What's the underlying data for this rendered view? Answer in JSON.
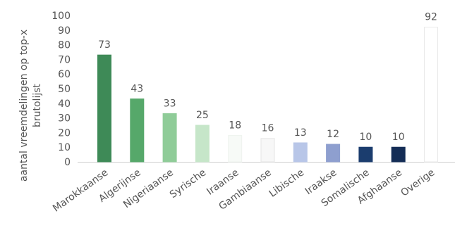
{
  "chart_data": {
    "type": "bar",
    "title": "",
    "xlabel": "",
    "ylabel_lines": [
      "aantal vreemdelingen op top-x",
      "brutolijst"
    ],
    "ylim": [
      0,
      100
    ],
    "yticks": [
      0,
      10,
      20,
      30,
      40,
      50,
      60,
      70,
      80,
      90,
      100
    ],
    "grid": false,
    "categories": [
      "Marokkaanse",
      "Algerijnse",
      "Nigeriaanse",
      "Syrische",
      "Iraanse",
      "Gambiaanse",
      "Libische",
      "Iraakse",
      "Somalische",
      "Afghaanse",
      "Overige"
    ],
    "values": [
      73,
      43,
      33,
      25,
      18,
      16,
      13,
      12,
      10,
      10,
      92
    ],
    "data_labels": [
      "73",
      "43",
      "33",
      "25",
      "18",
      "16",
      "13",
      "12",
      "10",
      "10",
      "92"
    ],
    "colors": [
      "#3e8a57",
      "#56a86a",
      "#8fcc98",
      "#c6e6c9",
      "#f7faf7",
      "#f7f7f7",
      "#b8c6e8",
      "#8e9fcf",
      "#1b3d6e",
      "#142d56",
      "#ffffff"
    ],
    "edge_colors": [
      "#3e8a57",
      "#56a86a",
      "#8fcc98",
      "#c6e6c9",
      "#eef3ee",
      "#e6e6e6",
      "#b8c6e8",
      "#8e9fcf",
      "#1b3d6e",
      "#142d56",
      "#e9e9e9"
    ]
  }
}
